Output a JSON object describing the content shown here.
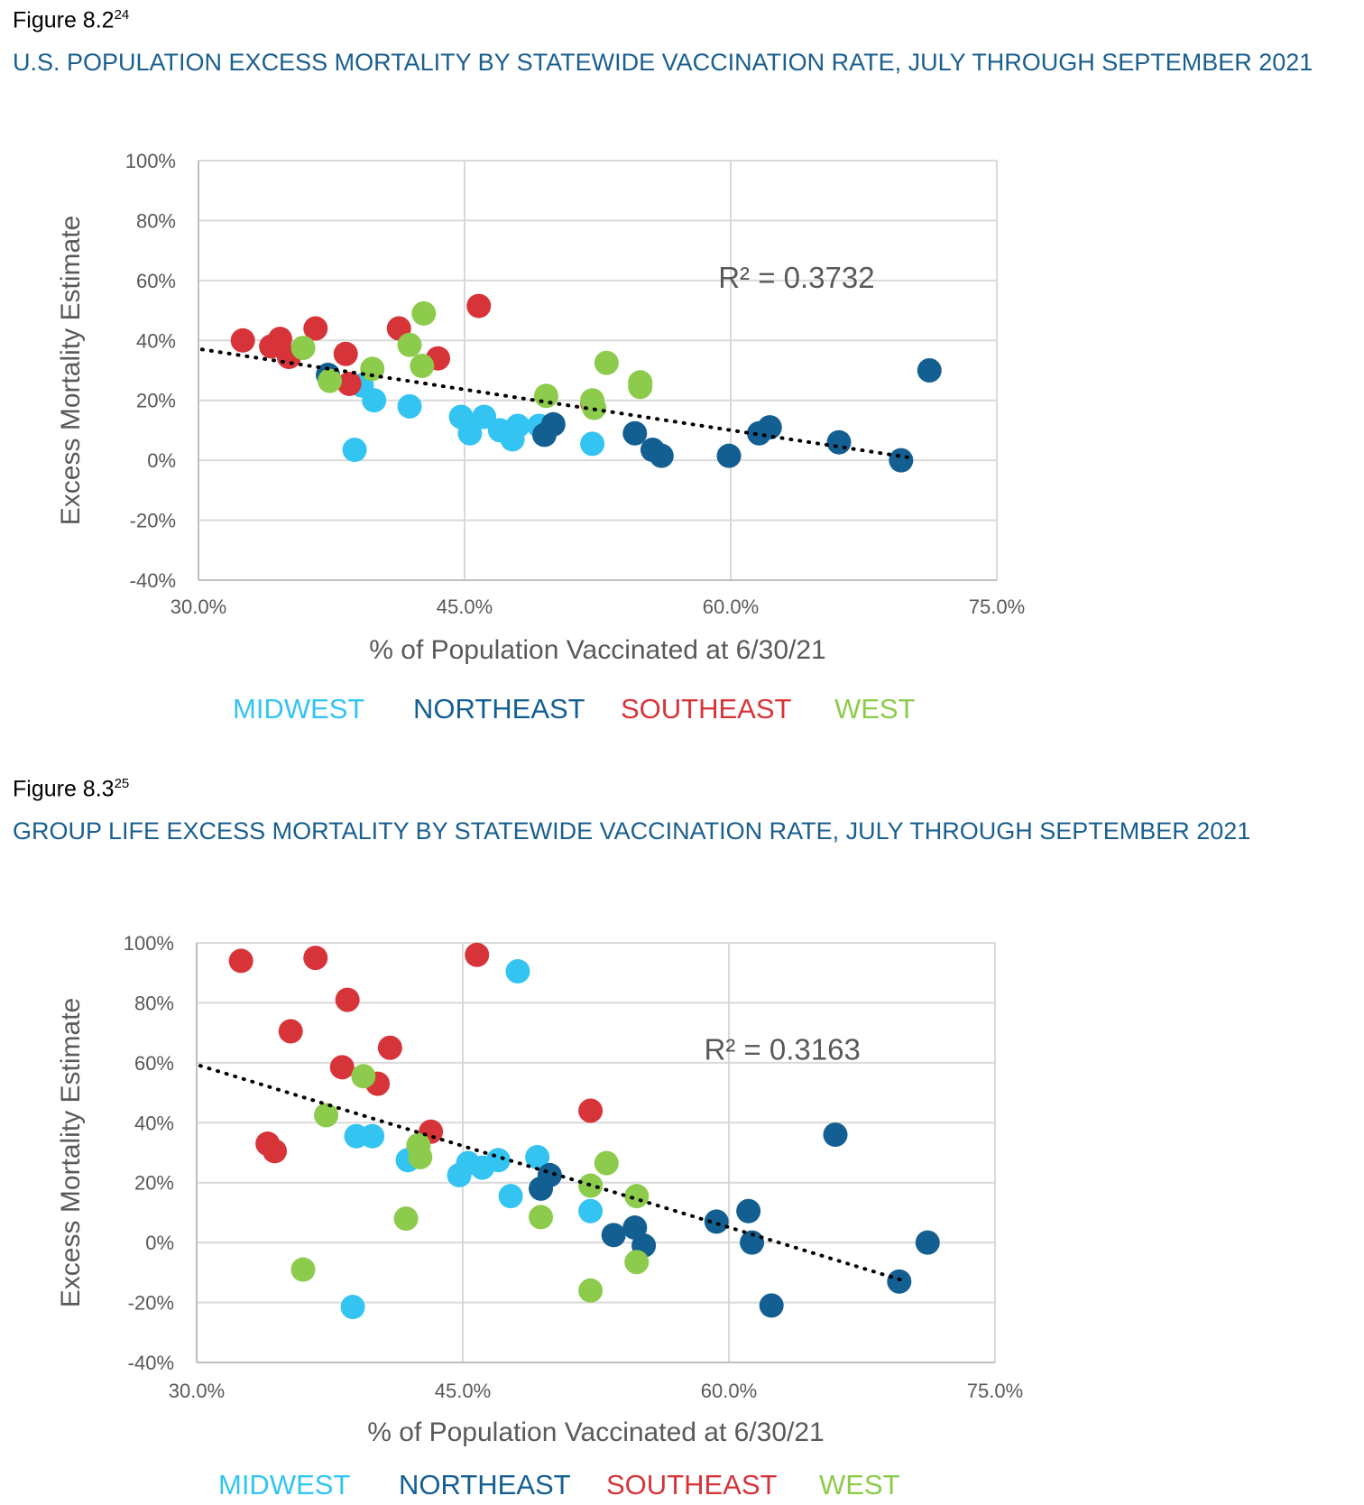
{
  "colors": {
    "midwest": "#33c4f2",
    "northeast": "#145f92",
    "southeast": "#d7343a",
    "west": "#8ccb4c",
    "title": "#1a5f8e",
    "grid": "#d9d9d9",
    "text": "#595959"
  },
  "figures": [
    {
      "label": "Figure 8.2",
      "footnote": "24",
      "title": "U.S. POPULATION EXCESS MORTALITY BY STATEWIDE VACCINATION RATE, JULY THROUGH SEPTEMBER 2021"
    },
    {
      "label": "Figure 8.3",
      "footnote": "25",
      "title": "GROUP LIFE EXCESS MORTALITY BY STATEWIDE VACCINATION RATE, JULY THROUGH SEPTEMBER 2021"
    }
  ],
  "chart_data": [
    {
      "type": "scatter",
      "title": "U.S. POPULATION EXCESS MORTALITY BY STATEWIDE VACCINATION RATE, JULY THROUGH SEPTEMBER 2021",
      "xlabel": "% of Population Vaccinated at 6/30/21",
      "ylabel": "Excess Mortality Estimate",
      "xlim": [
        30,
        75
      ],
      "ylim": [
        -40,
        100
      ],
      "xticks": [
        30,
        45,
        60,
        75
      ],
      "xtick_labels": [
        "30.0%",
        "45.0%",
        "60.0%",
        "75.0%"
      ],
      "yticks": [
        -40,
        -20,
        0,
        20,
        40,
        60,
        80,
        100
      ],
      "ytick_labels": [
        "-40%",
        "-20%",
        "0%",
        "20%",
        "40%",
        "60%",
        "80%",
        "100%"
      ],
      "grid": true,
      "annotation": "R² = 0.3732",
      "annotation_pos": [
        59.3,
        57.5
      ],
      "trendline": {
        "x": [
          30.2,
          70.0
        ],
        "y": [
          37.0,
          1.0
        ],
        "style": "dotted"
      },
      "legend": [
        "MIDWEST",
        "NORTHEAST",
        "SOUTHEAST",
        "WEST"
      ],
      "series": [
        {
          "name": "MIDWEST",
          "points": [
            [
              38.8,
              3.5
            ],
            [
              39.2,
              25
            ],
            [
              39.9,
              20
            ],
            [
              41.9,
              18
            ],
            [
              44.8,
              14.5
            ],
            [
              45.3,
              9
            ],
            [
              46.1,
              14.5
            ],
            [
              47,
              10
            ],
            [
              47.7,
              7
            ],
            [
              48,
              11.5
            ],
            [
              49.2,
              11.5
            ],
            [
              52.2,
              5.5
            ]
          ]
        },
        {
          "name": "NORTHEAST",
          "points": [
            [
              37.3,
              28.5
            ],
            [
              49.5,
              8.5
            ],
            [
              50,
              12
            ],
            [
              54.6,
              9
            ],
            [
              55.6,
              3.5
            ],
            [
              56.1,
              1.5
            ],
            [
              59.9,
              1.5
            ],
            [
              61.6,
              9
            ],
            [
              62.2,
              11
            ],
            [
              66.1,
              6
            ],
            [
              69.6,
              0
            ],
            [
              71.2,
              30
            ]
          ]
        },
        {
          "name": "SOUTHEAST",
          "points": [
            [
              32.5,
              40
            ],
            [
              34.1,
              38
            ],
            [
              34.6,
              40.5
            ],
            [
              35.1,
              34.5
            ],
            [
              36.6,
              44
            ],
            [
              38.3,
              35.5
            ],
            [
              38.5,
              25.5
            ],
            [
              41.3,
              44
            ],
            [
              43.5,
              34
            ],
            [
              45.8,
              51.5
            ],
            [
              52.2,
              19
            ]
          ]
        },
        {
          "name": "WEST",
          "points": [
            [
              35.9,
              37.5
            ],
            [
              37.4,
              26.5
            ],
            [
              39.8,
              30.5
            ],
            [
              41.9,
              38.5
            ],
            [
              42.6,
              31.5
            ],
            [
              42.7,
              49
            ],
            [
              49.6,
              21.5
            ],
            [
              52.2,
              20
            ],
            [
              52.3,
              17.5
            ],
            [
              53,
              32.5
            ],
            [
              54.9,
              26
            ],
            [
              54.9,
              24.5
            ]
          ]
        }
      ]
    },
    {
      "type": "scatter",
      "title": "GROUP LIFE EXCESS MORTALITY BY STATEWIDE VACCINATION RATE, JULY THROUGH SEPTEMBER 2021",
      "xlabel": "% of Population Vaccinated at 6/30/21",
      "ylabel": "Excess Mortality Estimate",
      "xlim": [
        30,
        75
      ],
      "ylim": [
        -40,
        100
      ],
      "xticks": [
        30,
        45,
        60,
        75
      ],
      "xtick_labels": [
        "30.0%",
        "45.0%",
        "60.0%",
        "75.0%"
      ],
      "yticks": [
        -40,
        -20,
        0,
        20,
        40,
        60,
        80,
        100
      ],
      "ytick_labels": [
        "-40%",
        "-20%",
        "0%",
        "20%",
        "40%",
        "60%",
        "80%",
        "100%"
      ],
      "grid": true,
      "annotation": "R² = 0.3163",
      "annotation_pos": [
        58.6,
        61
      ],
      "trendline": {
        "x": [
          30.2,
          70.0
        ],
        "y": [
          59.0,
          -13.0
        ],
        "style": "dotted"
      },
      "legend": [
        "MIDWEST",
        "NORTHEAST",
        "SOUTHEAST",
        "WEST"
      ],
      "series": [
        {
          "name": "MIDWEST",
          "points": [
            [
              48.1,
              90.5
            ],
            [
              38.8,
              -21.5
            ],
            [
              39,
              35.5
            ],
            [
              39.9,
              35.5
            ],
            [
              41.9,
              27.5
            ],
            [
              44.8,
              22.5
            ],
            [
              45.3,
              26.5
            ],
            [
              46.1,
              25
            ],
            [
              47,
              27.5
            ],
            [
              47.7,
              15.5
            ],
            [
              49.2,
              28.5
            ],
            [
              52.2,
              10.5
            ]
          ]
        },
        {
          "name": "NORTHEAST",
          "points": [
            [
              49.4,
              18
            ],
            [
              49.9,
              22.5
            ],
            [
              53.5,
              2.5
            ],
            [
              54.7,
              5
            ],
            [
              55.2,
              -1
            ],
            [
              59.3,
              7
            ],
            [
              61.1,
              10.5
            ],
            [
              61.3,
              0
            ],
            [
              62.4,
              -21
            ],
            [
              66,
              36
            ],
            [
              69.6,
              -13
            ],
            [
              71.2,
              0
            ]
          ]
        },
        {
          "name": "SOUTHEAST",
          "points": [
            [
              32.5,
              94
            ],
            [
              34,
              33
            ],
            [
              34.4,
              30.5
            ],
            [
              35.3,
              70.5
            ],
            [
              36.7,
              95
            ],
            [
              38.2,
              58.5
            ],
            [
              38.5,
              81
            ],
            [
              40.2,
              53
            ],
            [
              40.9,
              65
            ],
            [
              43.2,
              37
            ],
            [
              45.8,
              96
            ],
            [
              52.2,
              44
            ]
          ]
        },
        {
          "name": "WEST",
          "points": [
            [
              36,
              -9
            ],
            [
              37.3,
              42.5
            ],
            [
              39.4,
              55.5
            ],
            [
              41.8,
              8
            ],
            [
              42.5,
              32.5
            ],
            [
              42.6,
              28.5
            ],
            [
              49.4,
              8.5
            ],
            [
              52.2,
              19
            ],
            [
              52.2,
              -16
            ],
            [
              53.1,
              26.5
            ],
            [
              54.8,
              15.5
            ],
            [
              54.8,
              -6.5
            ]
          ]
        }
      ]
    }
  ]
}
